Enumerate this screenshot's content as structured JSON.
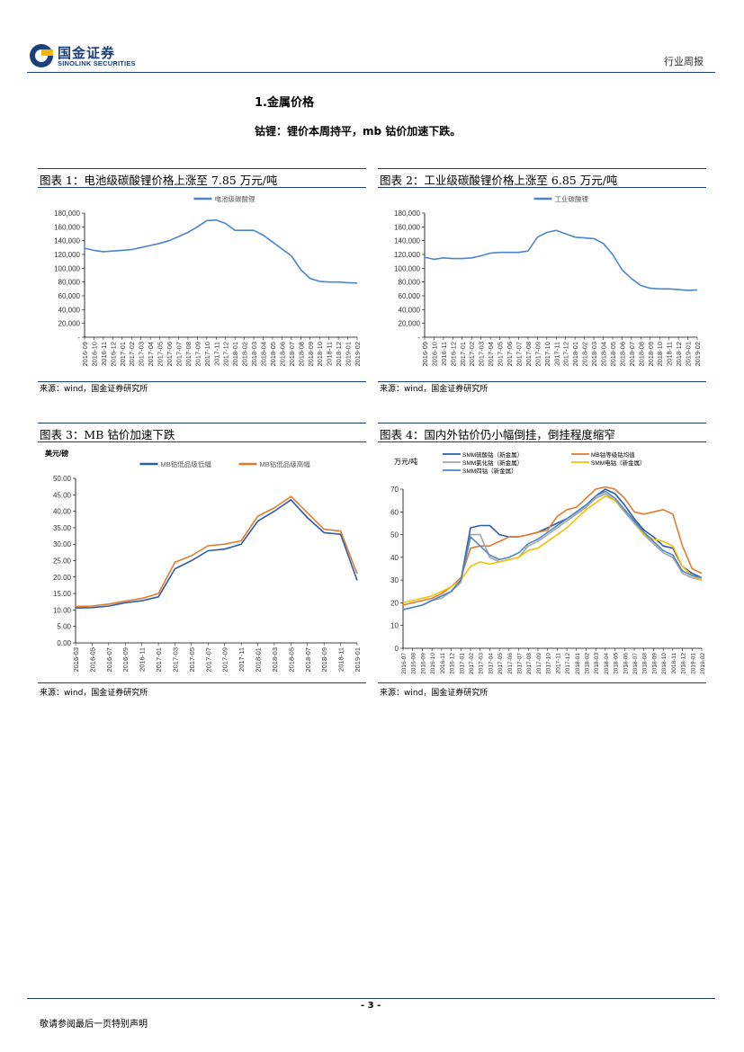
{
  "header": {
    "logo_cn": "国金证券",
    "logo_en": "SINOLINK SECURITIES",
    "report_type": "行业周报"
  },
  "section": {
    "title": "1.金属价格",
    "subtitle": "钴锂：锂价本周持平，mb 钴价加速下跌。"
  },
  "figures": [
    {
      "title": "图表 1：电池级碳酸锂价格上涨至 7.85 万元/吨",
      "source": "来源：wind，国金证券研究所"
    },
    {
      "title": "图表 2：工业级碳酸锂价格上涨至 6.85 万元/吨",
      "source": "来源：wind，国金证券研究所"
    },
    {
      "title": "图表 3：MB 钴价加速下跌",
      "source": "来源：wind，国金证券研究所"
    },
    {
      "title": "图表 4：国内外钴价仍小幅倒挂，倒挂程度缩窄",
      "source": "来源：wind，国金证券研究所"
    }
  ],
  "footer": {
    "page_number": "- 3 -",
    "disclaimer": "敬请参阅最后一页特别声明"
  },
  "colors": {
    "brand": "#1b3f7a",
    "line_blue": "#4a86c8",
    "line_orange": "#e07b2d",
    "line_gray": "#a5a5a5",
    "line_yellow": "#f2c200",
    "line_darkblue": "#2a5caa"
  },
  "chart_data": [
    {
      "type": "line",
      "title": "电池级碳酸锂",
      "ylim": [
        0,
        180000
      ],
      "yticks": [
        "-",
        "20,000",
        "40,000",
        "60,000",
        "80,000",
        "100,000",
        "120,000",
        "140,000",
        "160,000",
        "180,000"
      ],
      "categories": [
        "2016-09",
        "2016-10",
        "2016-11",
        "2016-12",
        "2017-01",
        "2017-02",
        "2017-03",
        "2017-04",
        "2017-05",
        "2017-06",
        "2017-07",
        "2017-08",
        "2017-09",
        "2017-10",
        "2017-11",
        "2017-12",
        "2018-01",
        "2018-02",
        "2018-03",
        "2018-04",
        "2018-05",
        "2018-06",
        "2018-07",
        "2018-08",
        "2018-09",
        "2018-10",
        "2018-11",
        "2018-12",
        "2019-01",
        "2019-02"
      ],
      "series": [
        {
          "name": "电池级碳酸锂",
          "values": [
            129000,
            126000,
            124000,
            125000,
            126000,
            127000,
            130000,
            133000,
            136000,
            140000,
            146000,
            152000,
            160000,
            169000,
            170000,
            165000,
            155000,
            155000,
            155000,
            148000,
            138000,
            128000,
            118000,
            98000,
            85000,
            81000,
            80000,
            80000,
            79000,
            78500
          ]
        }
      ]
    },
    {
      "type": "line",
      "title": "工业级碳酸锂",
      "ylim": [
        0,
        180000
      ],
      "yticks": [
        "-",
        "20,000",
        "40,000",
        "60,000",
        "80,000",
        "100,000",
        "120,000",
        "140,000",
        "160,000",
        "180,000"
      ],
      "categories": [
        "2016-09",
        "2016-10",
        "2016-11",
        "2016-12",
        "2017-01",
        "2017-02",
        "2017-03",
        "2017-04",
        "2017-05",
        "2017-06",
        "2017-07",
        "2017-08",
        "2017-09",
        "2017-10",
        "2017-11",
        "2017-12",
        "2018-01",
        "2018-02",
        "2018-03",
        "2018-04",
        "2018-05",
        "2018-06",
        "2018-07",
        "2018-08",
        "2018-09",
        "2018-10",
        "2018-11",
        "2018-12",
        "2019-01",
        "2019-02"
      ],
      "series": [
        {
          "name": "工业碳酸锂",
          "values": [
            116000,
            113000,
            115000,
            114000,
            114000,
            115000,
            118000,
            122000,
            123000,
            123000,
            123000,
            125000,
            145000,
            152000,
            155000,
            150000,
            145000,
            144000,
            143000,
            136000,
            120000,
            98000,
            85000,
            75000,
            71000,
            70000,
            70000,
            69000,
            68000,
            68500
          ]
        }
      ]
    },
    {
      "type": "line",
      "title": "MB钴价",
      "ylabel": "美元/磅",
      "ylim": [
        0,
        50
      ],
      "yticks": [
        "0.00",
        "5.00",
        "10.00",
        "15.00",
        "20.00",
        "25.00",
        "30.00",
        "35.00",
        "40.00",
        "45.00",
        "50.00"
      ],
      "categories": [
        "2016-03",
        "2016-05",
        "2016-07",
        "2016-09",
        "2016-11",
        "2017-01",
        "2017-03",
        "2017-05",
        "2017-07",
        "2017-09",
        "2017-11",
        "2018-01",
        "2018-03",
        "2018-05",
        "2018-07",
        "2018-09",
        "2018-11",
        "2019-01"
      ],
      "series": [
        {
          "name": "MB钴低品级低幅",
          "values": [
            10.6,
            10.7,
            11.2,
            12.2,
            12.8,
            14.0,
            22.5,
            25.0,
            28.0,
            28.5,
            30.0,
            37.0,
            40.0,
            43.5,
            38.0,
            33.5,
            33.0,
            19.0
          ]
        },
        {
          "name": "MB钴低品级高幅",
          "values": [
            11.1,
            11.2,
            11.8,
            12.7,
            13.5,
            15.0,
            24.5,
            26.5,
            29.5,
            30.0,
            31.0,
            38.5,
            41.0,
            44.5,
            39.5,
            34.5,
            34.0,
            21.0
          ]
        }
      ]
    },
    {
      "type": "line",
      "title": "国内外钴价",
      "ylabel": "万元/吨",
      "ylim": [
        0,
        70
      ],
      "yticks": [
        "0",
        "10",
        "20",
        "30",
        "40",
        "50",
        "60",
        "70"
      ],
      "categories": [
        "2016-07",
        "2016-08",
        "2016-09",
        "2016-10",
        "2016-11",
        "2016-12",
        "2017-01",
        "2017-02",
        "2017-03",
        "2017-04",
        "2017-05",
        "2017-06",
        "2017-07",
        "2017-08",
        "2017-09",
        "2017-10",
        "2017-11",
        "2017-12",
        "2018-01",
        "2018-02",
        "2018-03",
        "2018-04",
        "2018-05",
        "2018-06",
        "2018-07",
        "2018-08",
        "2018-09",
        "2018-10",
        "2018-11",
        "2018-12",
        "2019-01",
        "2019-02"
      ],
      "series": [
        {
          "name": "SMM硫酸钴（新金属）",
          "values": [
            17,
            18,
            19,
            21,
            23,
            25,
            30,
            53,
            54,
            54,
            50,
            49,
            49,
            50,
            51,
            53,
            55,
            57,
            60,
            63,
            67,
            70,
            68,
            63,
            57,
            52,
            49,
            45,
            44,
            36,
            33,
            31
          ]
        },
        {
          "name": "MB钴等级钴均值",
          "values": [
            19,
            20,
            21,
            22,
            24,
            27,
            31,
            44,
            45,
            45,
            47,
            49,
            49,
            50,
            51,
            52,
            58,
            61,
            62,
            66,
            70,
            71,
            70,
            66,
            60,
            59,
            60,
            61,
            59,
            45,
            35,
            33
          ]
        },
        {
          "name": "SMM氯化钴（新金属）",
          "values": [
            17,
            18,
            19,
            21,
            22,
            25,
            29,
            50,
            50,
            40,
            38,
            39,
            40,
            45,
            47,
            50,
            53,
            56,
            59,
            62,
            66,
            68,
            65,
            60,
            55,
            50,
            46,
            42,
            40,
            33,
            31,
            30
          ]
        },
        {
          "name": "SMM电钴（新金属）",
          "values": [
            20,
            21,
            22,
            23,
            25,
            27,
            30,
            36,
            38,
            37,
            38,
            39,
            40,
            43,
            44,
            47,
            50,
            53,
            57,
            61,
            64,
            67,
            65,
            61,
            56,
            50,
            48,
            47,
            45,
            36,
            32,
            30
          ]
        },
        {
          "name": "SMM四钴（新金属）",
          "values": [
            17,
            18,
            19,
            21,
            23,
            25,
            30,
            49,
            45,
            41,
            39,
            40,
            42,
            46,
            48,
            51,
            54,
            57,
            60,
            63,
            67,
            69,
            66,
            61,
            56,
            51,
            47,
            43,
            41,
            34,
            32,
            31
          ]
        }
      ]
    }
  ]
}
